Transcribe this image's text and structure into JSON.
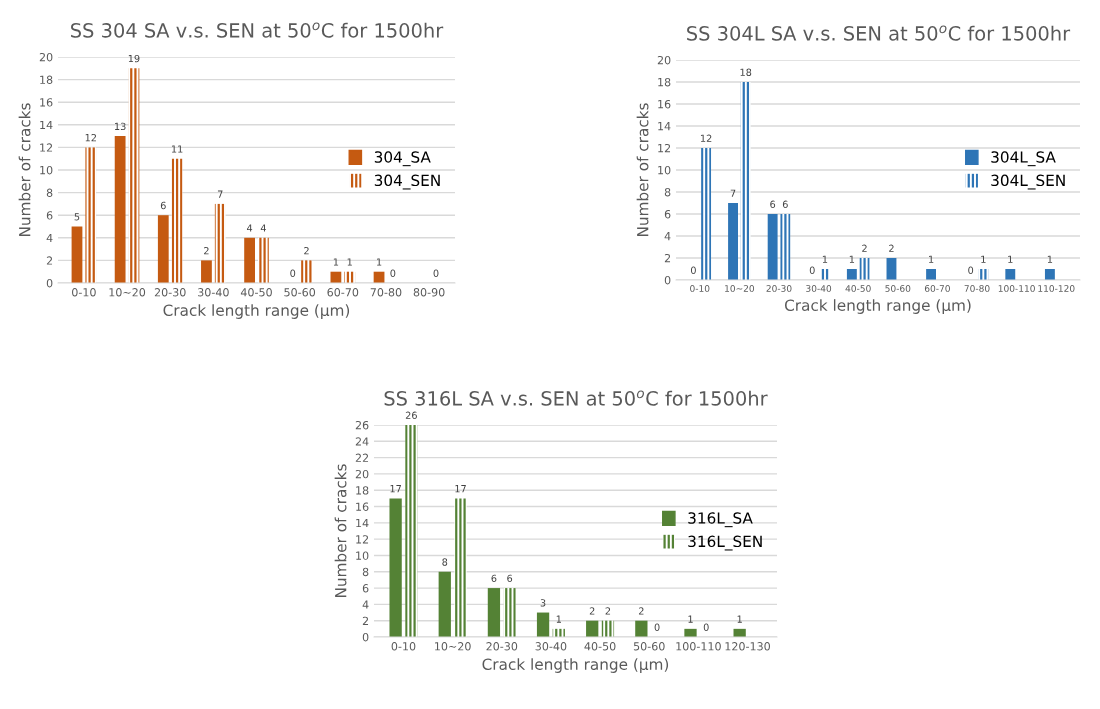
{
  "chart_data": [
    {
      "type": "bar",
      "title": "SS 304 SA v.s. SEN at 50$^{o}$C for 1500hr",
      "xlabel": "Crack length range (µm)",
      "ylabel": "Number of cracks",
      "categories": [
        "0-10",
        "10~20",
        "20-30",
        "30-40",
        "40-50",
        "50-60",
        "60-70",
        "70-80",
        "80-90"
      ],
      "series": [
        {
          "name": "304_SA",
          "color": "#c55a11",
          "values": [
            5,
            13,
            6,
            2,
            4,
            0,
            1,
            1,
            null
          ]
        },
        {
          "name": "304_SEN",
          "color": "#c55a11",
          "values": [
            12,
            19,
            11,
            7,
            4,
            2,
            1,
            0,
            0
          ]
        }
      ],
      "ylim": [
        0,
        20
      ],
      "yticks": [
        0,
        2,
        4,
        6,
        8,
        10,
        12,
        14,
        16,
        18,
        20
      ],
      "grid": "y",
      "legend": "right",
      "data_labels": true
    },
    {
      "type": "bar",
      "title": "SS 304L SA v.s. SEN at 50$^{o}$C for 1500hr",
      "xlabel": "Crack length range (µm)",
      "ylabel": "Number of cracks",
      "categories": [
        "0-10",
        "10~20",
        "20-30",
        "30-40",
        "40-50",
        "50-60",
        "60-70",
        "70-80",
        "100-110",
        "110-120"
      ],
      "series": [
        {
          "name": "304L_SA",
          "color": "#2e75b6",
          "values": [
            0,
            7,
            6,
            0,
            1,
            2,
            1,
            0,
            1,
            1
          ]
        },
        {
          "name": "304L_SEN",
          "color": "#2e75b6",
          "values": [
            12,
            18,
            6,
            1,
            2,
            null,
            null,
            1,
            null,
            null
          ]
        }
      ],
      "ylim": [
        0,
        20
      ],
      "yticks": [
        0,
        2,
        4,
        6,
        8,
        10,
        12,
        14,
        16,
        18,
        20
      ],
      "grid": "y",
      "legend": "right",
      "data_labels": true
    },
    {
      "type": "bar",
      "title": "SS 316L SA v.s. SEN at 50$^{o}$C for 1500hr",
      "xlabel": "Crack length range (µm)",
      "ylabel": "Number of cracks",
      "categories": [
        "0-10",
        "10~20",
        "20-30",
        "30-40",
        "40-50",
        "50-60",
        "100-110",
        "120-130"
      ],
      "series": [
        {
          "name": "316L_SA",
          "color": "#548235",
          "values": [
            17,
            8,
            6,
            3,
            2,
            2,
            1,
            1
          ]
        },
        {
          "name": "316L_SEN",
          "color": "#548235",
          "values": [
            26,
            17,
            6,
            1,
            2,
            0,
            0,
            null
          ]
        }
      ],
      "ylim": [
        0,
        26
      ],
      "yticks": [
        0,
        2,
        4,
        6,
        8,
        10,
        12,
        14,
        16,
        18,
        20,
        22,
        24,
        26
      ],
      "grid": "y",
      "legend": "right",
      "data_labels": true
    }
  ]
}
